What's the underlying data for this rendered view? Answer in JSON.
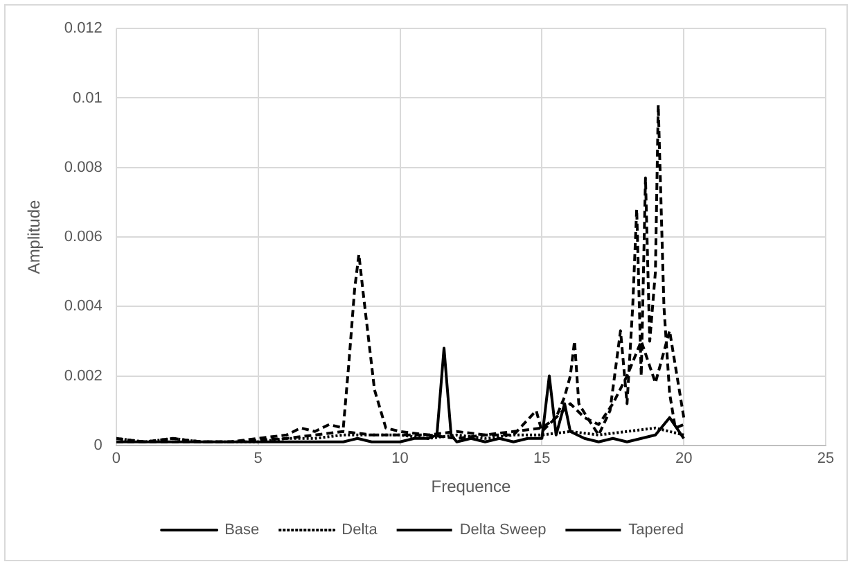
{
  "chart_data": {
    "type": "line",
    "xlabel": "Frequence",
    "ylabel": "Amplitude",
    "xlim": [
      0,
      25
    ],
    "xticks": [
      0,
      5,
      10,
      15,
      20,
      25
    ],
    "ylim": [
      0,
      0.012
    ],
    "yticks": [
      0,
      0.002,
      0.004,
      0.006,
      0.008,
      0.01,
      0.012
    ],
    "grid": true,
    "legend": "bottom",
    "marker": "none",
    "series": [
      {
        "name": "Base",
        "color": "#000000",
        "line_style": "solid",
        "x": [
          0,
          0.5,
          1,
          1.5,
          2,
          2.5,
          3,
          3.5,
          4,
          4.5,
          5,
          5.5,
          6,
          6.5,
          7,
          7.5,
          8,
          8.5,
          9,
          9.5,
          10,
          10.5,
          11,
          11.3,
          11.55,
          11.8,
          12,
          12.5,
          13,
          13.5,
          14,
          14.5,
          15,
          15.26,
          15.5,
          15.8,
          16,
          16.5,
          17,
          17.5,
          18,
          18.5,
          19,
          19.5,
          20
        ],
        "values": [
          0.0001,
          0.0001,
          0.0001,
          0.0001,
          0.0001,
          0.0001,
          0.0001,
          0.0001,
          0.0001,
          0.0001,
          0.0001,
          0.0001,
          0.0001,
          0.0001,
          0.0001,
          0.0001,
          0.0001,
          0.0002,
          0.0001,
          0.0001,
          0.0001,
          0.0002,
          0.0002,
          0.0003,
          0.0028,
          0.0003,
          0.0001,
          0.0002,
          0.0001,
          0.0002,
          0.0001,
          0.0002,
          0.0002,
          0.002,
          0.0003,
          0.0012,
          0.0004,
          0.0002,
          0.0001,
          0.0002,
          0.0001,
          0.0002,
          0.0003,
          0.0008,
          0.0002
        ]
      },
      {
        "name": "Delta",
        "color": "#000000",
        "line_style": "dotted",
        "x": [
          0,
          1,
          2,
          3,
          4,
          5,
          6,
          7,
          8,
          9,
          10,
          11,
          12,
          13,
          14,
          15,
          16,
          17,
          18,
          19,
          20
        ],
        "values": [
          0.0002,
          0.0001,
          0.0002,
          0.0001,
          0.0001,
          0.0001,
          0.0002,
          0.0002,
          0.0003,
          0.0003,
          0.0003,
          0.0002,
          0.0003,
          0.0002,
          0.0003,
          0.0003,
          0.0004,
          0.0003,
          0.0004,
          0.0005,
          0.0003
        ]
      },
      {
        "name": "Delta Sweep",
        "color": "#000000",
        "line_style": "dashed",
        "x": [
          0,
          1,
          2,
          3,
          4,
          5,
          6,
          6.5,
          7,
          7.5,
          8,
          8.2,
          8.4,
          8.55,
          8.7,
          8.9,
          9.1,
          9.5,
          10,
          11,
          12,
          13,
          14,
          15,
          15.5,
          16,
          16.5,
          17,
          17.5,
          18,
          18.5,
          19,
          19.5,
          20
        ],
        "values": [
          0.0002,
          0.0001,
          0.0002,
          0.0001,
          0.0001,
          0.0002,
          0.0003,
          0.0005,
          0.0004,
          0.0006,
          0.0005,
          0.0024,
          0.0045,
          0.0055,
          0.0044,
          0.003,
          0.0016,
          0.0005,
          0.0004,
          0.0003,
          0.0004,
          0.0003,
          0.0004,
          0.0005,
          0.0008,
          0.0012,
          0.0008,
          0.0006,
          0.0012,
          0.002,
          0.003,
          0.0018,
          0.0033,
          0.0008
        ]
      },
      {
        "name": "Tapered",
        "color": "#000000",
        "line_style": "dashed",
        "x": [
          0,
          2,
          4,
          6,
          7,
          8,
          9,
          10,
          11,
          12,
          13,
          14,
          14.8,
          15,
          15.5,
          15.8,
          16,
          16.15,
          16.3,
          16.6,
          17,
          17.4,
          17.77,
          18,
          18.2,
          18.34,
          18.5,
          18.65,
          18.8,
          19.0,
          19.1,
          19.3,
          19.5,
          19.7,
          20
        ],
        "values": [
          0.0001,
          0.0001,
          0.0001,
          0.0002,
          0.0003,
          0.0004,
          0.0003,
          0.0003,
          0.0003,
          0.0002,
          0.0003,
          0.0003,
          0.001,
          0.0004,
          0.0008,
          0.0014,
          0.002,
          0.003,
          0.0012,
          0.0008,
          0.0003,
          0.001,
          0.0033,
          0.0012,
          0.004,
          0.0068,
          0.002,
          0.0077,
          0.003,
          0.005,
          0.0098,
          0.004,
          0.0015,
          0.0005,
          0.0006
        ]
      }
    ]
  }
}
